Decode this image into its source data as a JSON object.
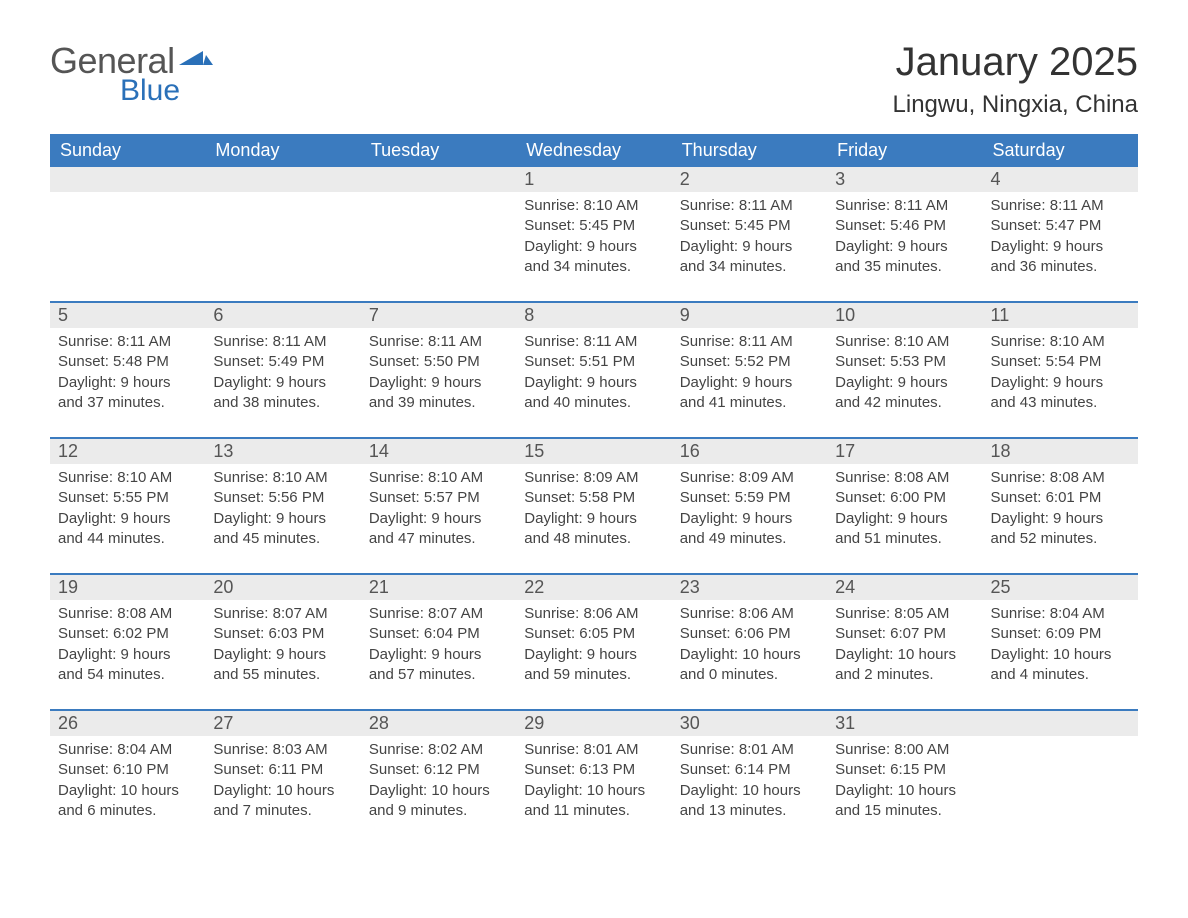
{
  "logo": {
    "word1": "General",
    "word2": "Blue"
  },
  "title": "January 2025",
  "location": "Lingwu, Ningxia, China",
  "colors": {
    "header_bg": "#3b7bbf",
    "header_text": "#ffffff",
    "daynum_bg": "#ebebeb",
    "row_border": "#3b7bbf",
    "logo_gray": "#555555",
    "logo_blue": "#2a70b8",
    "text": "#333333"
  },
  "weekdays": [
    "Sunday",
    "Monday",
    "Tuesday",
    "Wednesday",
    "Thursday",
    "Friday",
    "Saturday"
  ],
  "labels": {
    "sunrise": "Sunrise: ",
    "sunset": "Sunset: ",
    "daylight": "Daylight: "
  },
  "weeks": [
    [
      null,
      null,
      null,
      {
        "n": "1",
        "sunrise": "8:10 AM",
        "sunset": "5:45 PM",
        "daylight": "9 hours and 34 minutes."
      },
      {
        "n": "2",
        "sunrise": "8:11 AM",
        "sunset": "5:45 PM",
        "daylight": "9 hours and 34 minutes."
      },
      {
        "n": "3",
        "sunrise": "8:11 AM",
        "sunset": "5:46 PM",
        "daylight": "9 hours and 35 minutes."
      },
      {
        "n": "4",
        "sunrise": "8:11 AM",
        "sunset": "5:47 PM",
        "daylight": "9 hours and 36 minutes."
      }
    ],
    [
      {
        "n": "5",
        "sunrise": "8:11 AM",
        "sunset": "5:48 PM",
        "daylight": "9 hours and 37 minutes."
      },
      {
        "n": "6",
        "sunrise": "8:11 AM",
        "sunset": "5:49 PM",
        "daylight": "9 hours and 38 minutes."
      },
      {
        "n": "7",
        "sunrise": "8:11 AM",
        "sunset": "5:50 PM",
        "daylight": "9 hours and 39 minutes."
      },
      {
        "n": "8",
        "sunrise": "8:11 AM",
        "sunset": "5:51 PM",
        "daylight": "9 hours and 40 minutes."
      },
      {
        "n": "9",
        "sunrise": "8:11 AM",
        "sunset": "5:52 PM",
        "daylight": "9 hours and 41 minutes."
      },
      {
        "n": "10",
        "sunrise": "8:10 AM",
        "sunset": "5:53 PM",
        "daylight": "9 hours and 42 minutes."
      },
      {
        "n": "11",
        "sunrise": "8:10 AM",
        "sunset": "5:54 PM",
        "daylight": "9 hours and 43 minutes."
      }
    ],
    [
      {
        "n": "12",
        "sunrise": "8:10 AM",
        "sunset": "5:55 PM",
        "daylight": "9 hours and 44 minutes."
      },
      {
        "n": "13",
        "sunrise": "8:10 AM",
        "sunset": "5:56 PM",
        "daylight": "9 hours and 45 minutes."
      },
      {
        "n": "14",
        "sunrise": "8:10 AM",
        "sunset": "5:57 PM",
        "daylight": "9 hours and 47 minutes."
      },
      {
        "n": "15",
        "sunrise": "8:09 AM",
        "sunset": "5:58 PM",
        "daylight": "9 hours and 48 minutes."
      },
      {
        "n": "16",
        "sunrise": "8:09 AM",
        "sunset": "5:59 PM",
        "daylight": "9 hours and 49 minutes."
      },
      {
        "n": "17",
        "sunrise": "8:08 AM",
        "sunset": "6:00 PM",
        "daylight": "9 hours and 51 minutes."
      },
      {
        "n": "18",
        "sunrise": "8:08 AM",
        "sunset": "6:01 PM",
        "daylight": "9 hours and 52 minutes."
      }
    ],
    [
      {
        "n": "19",
        "sunrise": "8:08 AM",
        "sunset": "6:02 PM",
        "daylight": "9 hours and 54 minutes."
      },
      {
        "n": "20",
        "sunrise": "8:07 AM",
        "sunset": "6:03 PM",
        "daylight": "9 hours and 55 minutes."
      },
      {
        "n": "21",
        "sunrise": "8:07 AM",
        "sunset": "6:04 PM",
        "daylight": "9 hours and 57 minutes."
      },
      {
        "n": "22",
        "sunrise": "8:06 AM",
        "sunset": "6:05 PM",
        "daylight": "9 hours and 59 minutes."
      },
      {
        "n": "23",
        "sunrise": "8:06 AM",
        "sunset": "6:06 PM",
        "daylight": "10 hours and 0 minutes."
      },
      {
        "n": "24",
        "sunrise": "8:05 AM",
        "sunset": "6:07 PM",
        "daylight": "10 hours and 2 minutes."
      },
      {
        "n": "25",
        "sunrise": "8:04 AM",
        "sunset": "6:09 PM",
        "daylight": "10 hours and 4 minutes."
      }
    ],
    [
      {
        "n": "26",
        "sunrise": "8:04 AM",
        "sunset": "6:10 PM",
        "daylight": "10 hours and 6 minutes."
      },
      {
        "n": "27",
        "sunrise": "8:03 AM",
        "sunset": "6:11 PM",
        "daylight": "10 hours and 7 minutes."
      },
      {
        "n": "28",
        "sunrise": "8:02 AM",
        "sunset": "6:12 PM",
        "daylight": "10 hours and 9 minutes."
      },
      {
        "n": "29",
        "sunrise": "8:01 AM",
        "sunset": "6:13 PM",
        "daylight": "10 hours and 11 minutes."
      },
      {
        "n": "30",
        "sunrise": "8:01 AM",
        "sunset": "6:14 PM",
        "daylight": "10 hours and 13 minutes."
      },
      {
        "n": "31",
        "sunrise": "8:00 AM",
        "sunset": "6:15 PM",
        "daylight": "10 hours and 15 minutes."
      },
      null
    ]
  ]
}
